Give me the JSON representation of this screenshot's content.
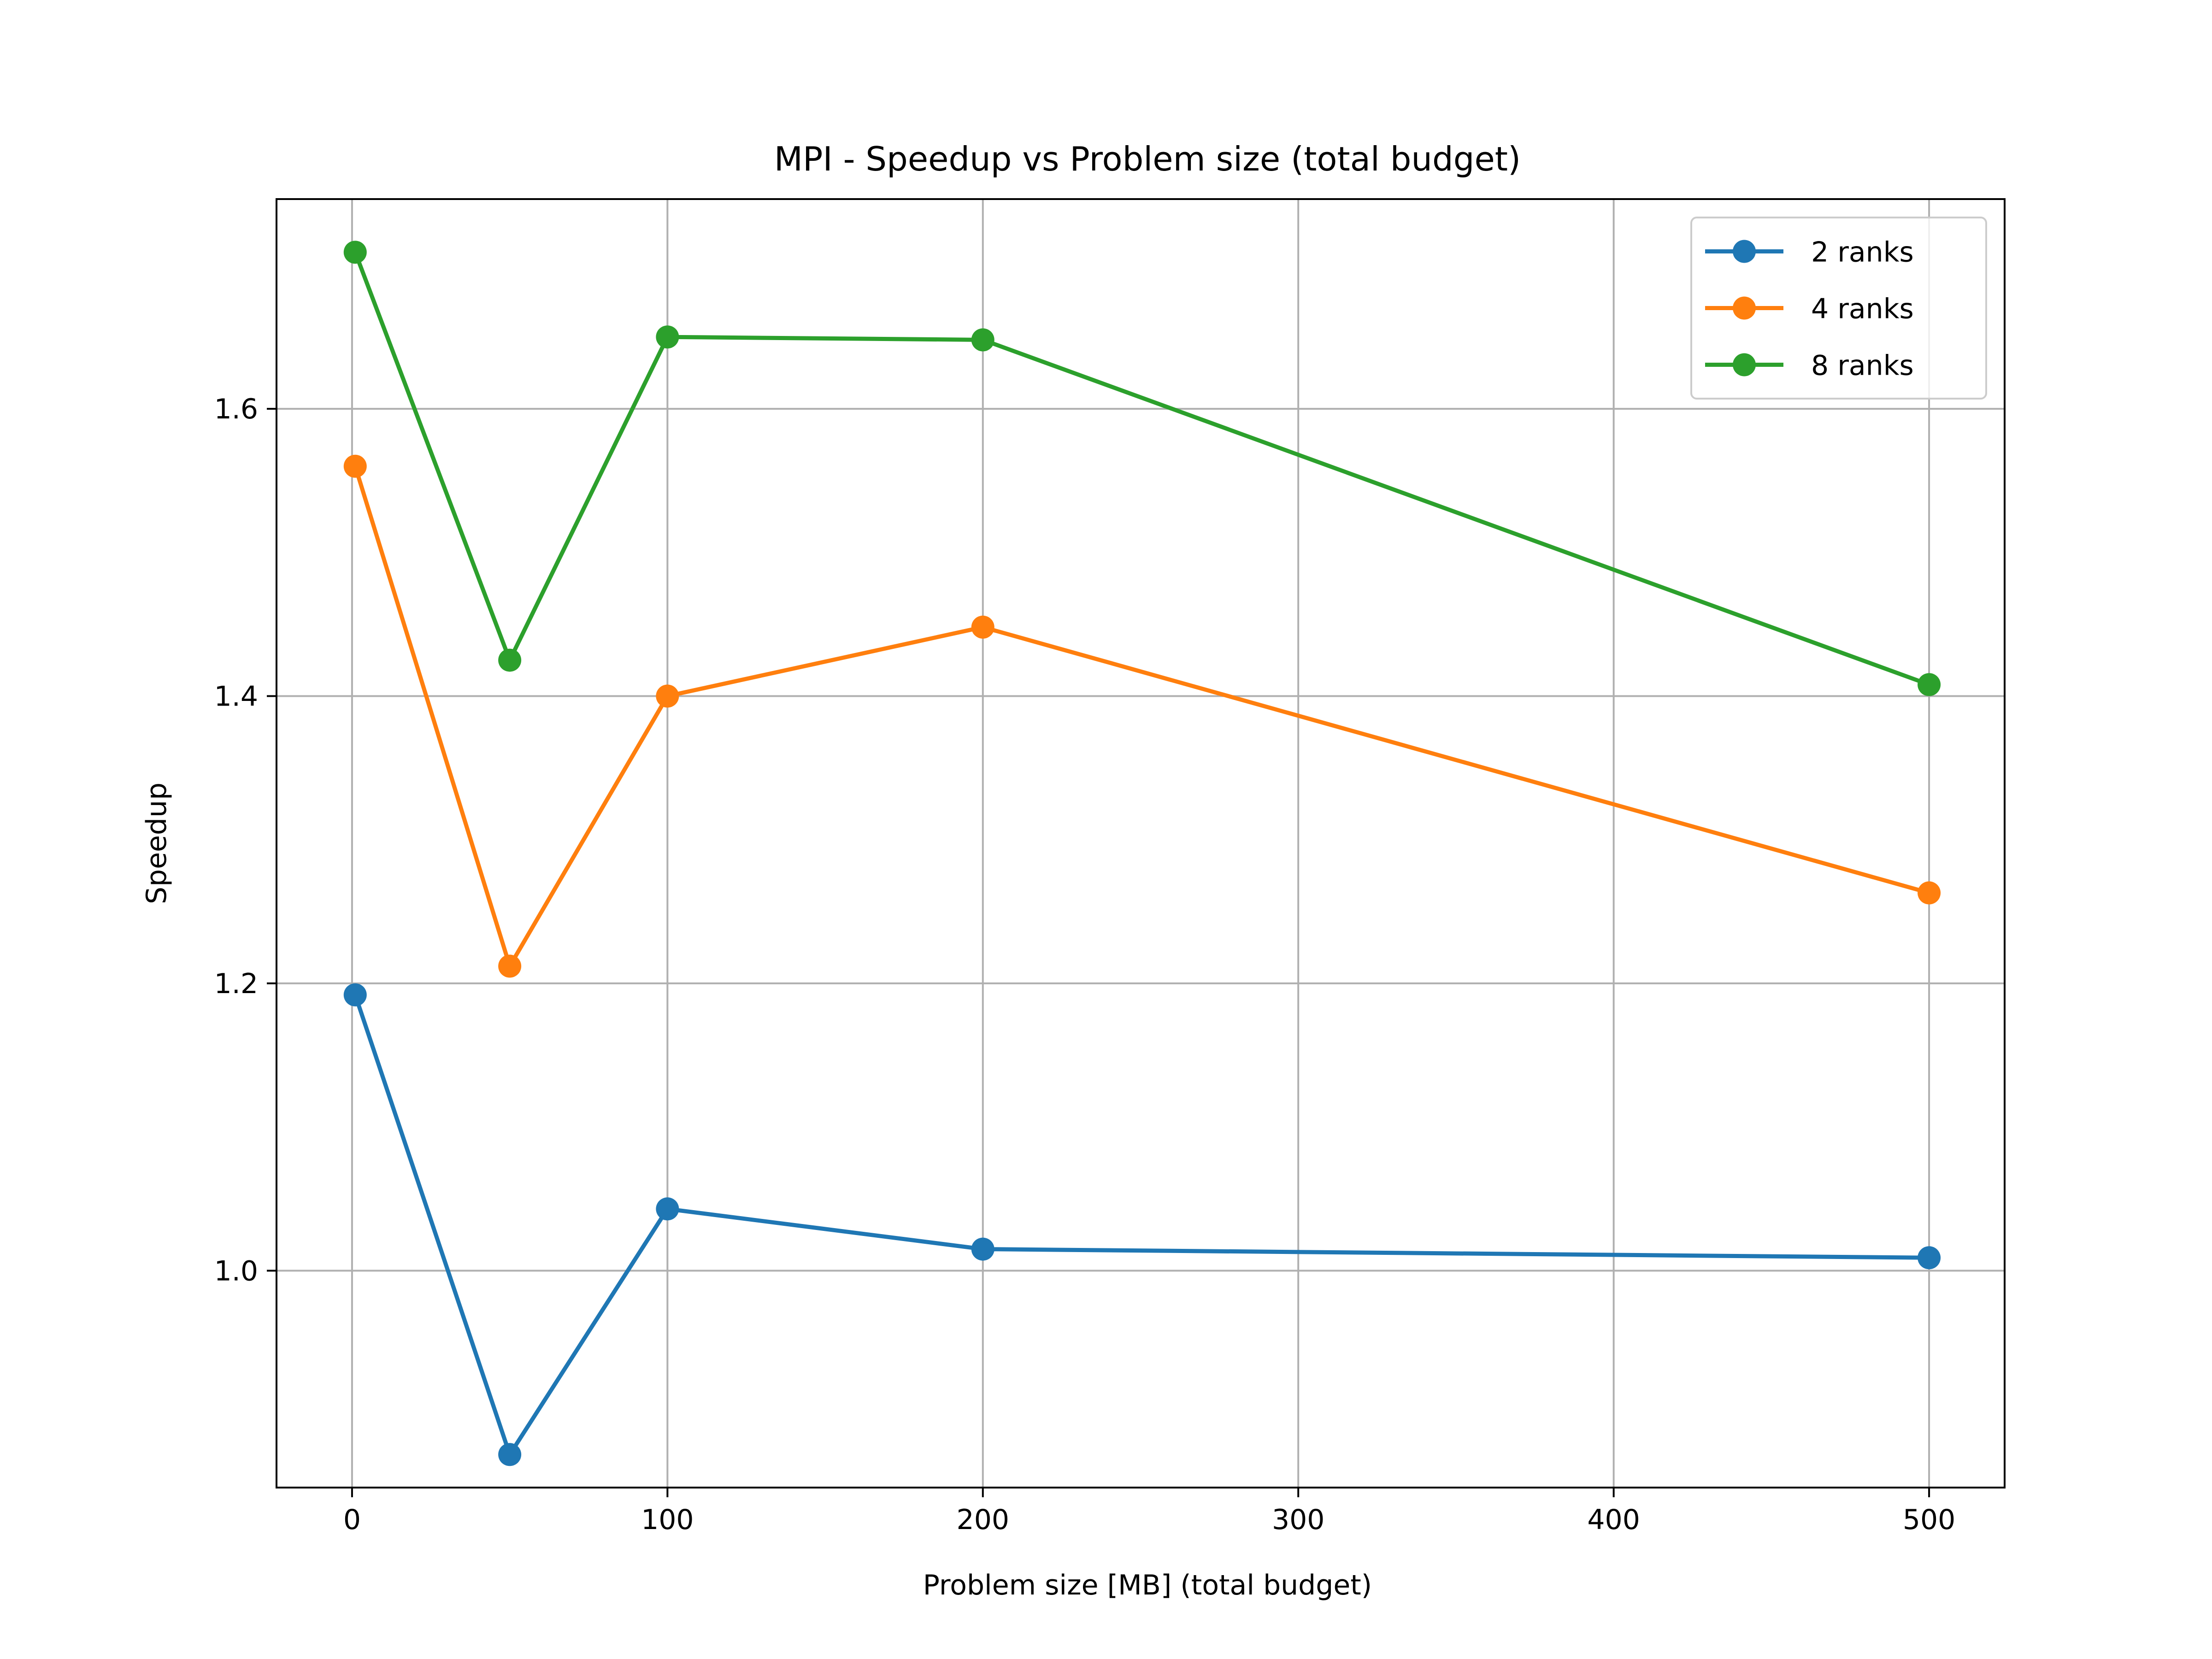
{
  "chart_data": {
    "type": "line",
    "title": "MPI - Speedup vs Problem size (total budget)",
    "xlabel": "Problem size [MB] (total budget)",
    "ylabel": "Speedup",
    "xlim": [
      -23.95,
      523.95
    ],
    "ylim": [
      0.849,
      1.746
    ],
    "xticks": [
      0,
      100,
      200,
      300,
      400,
      500
    ],
    "yticks": [
      1.0,
      1.2,
      1.4,
      1.6
    ],
    "xtick_labels": [
      "0",
      "100",
      "200",
      "300",
      "400",
      "500"
    ],
    "ytick_labels": [
      "1.0",
      "1.2",
      "1.4",
      "1.6"
    ],
    "grid": true,
    "legend_position": "top-right",
    "x": [
      1,
      50,
      100,
      200,
      500
    ],
    "series": [
      {
        "name": "2 ranks",
        "color": "#1f77b4",
        "values": [
          1.192,
          0.872,
          1.043,
          1.015,
          1.009
        ]
      },
      {
        "name": "4 ranks",
        "color": "#ff7f0e",
        "values": [
          1.56,
          1.212,
          1.4,
          1.448,
          1.263
        ]
      },
      {
        "name": "8 ranks",
        "color": "#2ca02c",
        "values": [
          1.709,
          1.425,
          1.65,
          1.648,
          1.408
        ]
      }
    ]
  }
}
